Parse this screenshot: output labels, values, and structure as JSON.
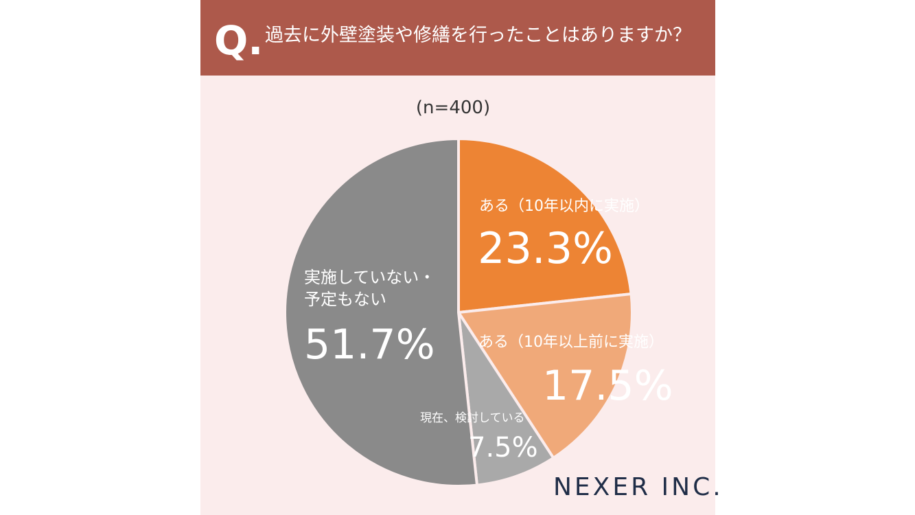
{
  "header_label": "Q.",
  "logo": "NEXER INC.",
  "chart_data": {
    "type": "pie",
    "title": "過去に外壁塗装や修繕を行ったことはありますか？",
    "subtitle": "(n=400)",
    "categories": [
      "ある（10年以内に実施）",
      "ある（10年以上前に実施）",
      "現在、検討している",
      "実施していない・予定もない"
    ],
    "values": [
      23.3,
      17.5,
      7.5,
      51.7
    ],
    "value_labels": [
      "23.3%",
      "17.5%",
      "7.5%",
      "51.7%"
    ],
    "colors": [
      "#ed8434",
      "#f0a979",
      "#a9a9a9",
      "#8a8a8a"
    ]
  }
}
